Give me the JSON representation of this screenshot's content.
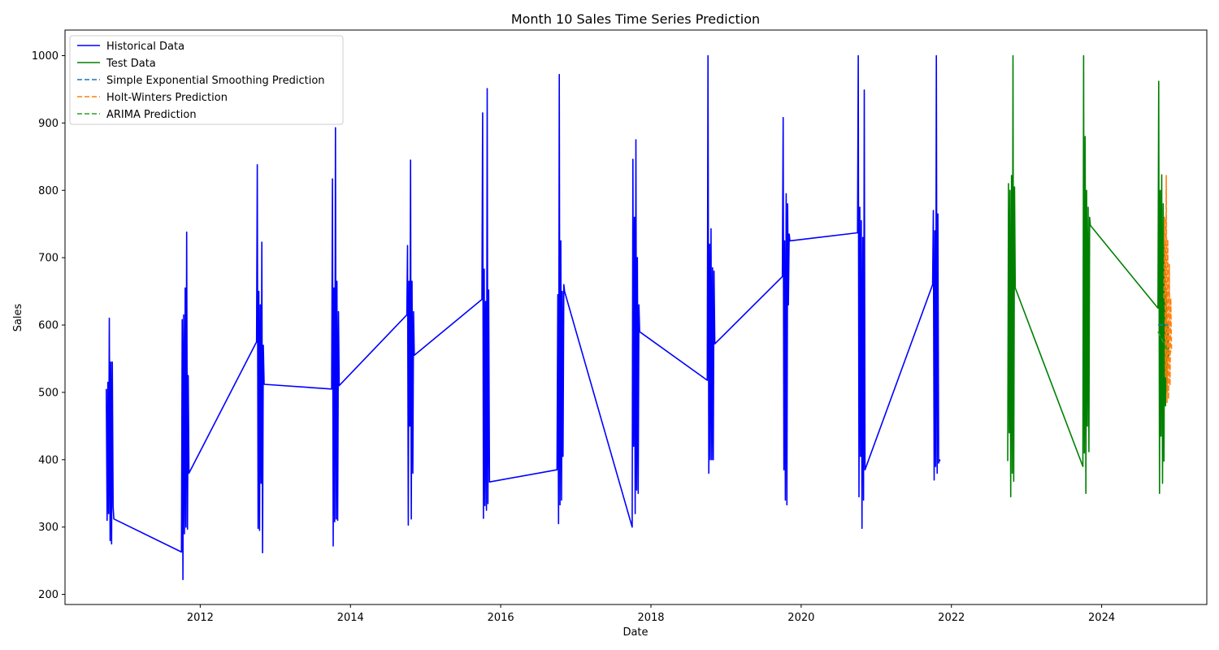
{
  "chart_data": {
    "type": "line",
    "title": "Month 10 Sales Time Series Prediction",
    "xlabel": "Date",
    "ylabel": "Sales",
    "xlim": [
      2010.2,
      2025.4
    ],
    "ylim": [
      185,
      1038
    ],
    "x_ticks": [
      2012,
      2014,
      2016,
      2018,
      2020,
      2022,
      2024
    ],
    "y_ticks": [
      200,
      300,
      400,
      500,
      600,
      700,
      800,
      900,
      1000
    ],
    "grid": false,
    "legend_position": "top-left",
    "series": [
      {
        "name": "Historical Data",
        "color": "#0000ff",
        "dash": "solid",
        "points": [
          [
            2010.75,
            505
          ],
          [
            2010.76,
            310
          ],
          [
            2010.77,
            515
          ],
          [
            2010.78,
            320
          ],
          [
            2010.79,
            610
          ],
          [
            2010.8,
            280
          ],
          [
            2010.81,
            545
          ],
          [
            2010.82,
            275
          ],
          [
            2010.83,
            545
          ],
          [
            2010.84,
            330
          ],
          [
            2010.85,
            312
          ],
          [
            2011.75,
            263
          ],
          [
            2011.76,
            608
          ],
          [
            2011.77,
            222
          ],
          [
            2011.78,
            615
          ],
          [
            2011.79,
            290
          ],
          [
            2011.8,
            655
          ],
          [
            2011.81,
            300
          ],
          [
            2011.82,
            738
          ],
          [
            2011.83,
            297
          ],
          [
            2011.84,
            525
          ],
          [
            2011.85,
            380
          ],
          [
            2012.75,
            575
          ],
          [
            2012.76,
            838
          ],
          [
            2012.77,
            298
          ],
          [
            2012.78,
            650
          ],
          [
            2012.79,
            295
          ],
          [
            2012.8,
            630
          ],
          [
            2012.81,
            365
          ],
          [
            2012.82,
            723
          ],
          [
            2012.83,
            262
          ],
          [
            2012.84,
            570
          ],
          [
            2012.85,
            512
          ],
          [
            2013.75,
            505
          ],
          [
            2013.76,
            817
          ],
          [
            2013.77,
            272
          ],
          [
            2013.78,
            655
          ],
          [
            2013.79,
            308
          ],
          [
            2013.8,
            893
          ],
          [
            2013.81,
            312
          ],
          [
            2013.82,
            665
          ],
          [
            2013.83,
            310
          ],
          [
            2013.84,
            620
          ],
          [
            2013.85,
            510
          ],
          [
            2014.75,
            615
          ],
          [
            2014.76,
            718
          ],
          [
            2014.77,
            303
          ],
          [
            2014.78,
            665
          ],
          [
            2014.79,
            450
          ],
          [
            2014.8,
            845
          ],
          [
            2014.81,
            312
          ],
          [
            2014.82,
            665
          ],
          [
            2014.83,
            380
          ],
          [
            2014.84,
            620
          ],
          [
            2014.85,
            555
          ],
          [
            2015.75,
            638
          ],
          [
            2015.76,
            915
          ],
          [
            2015.77,
            313
          ],
          [
            2015.78,
            683
          ],
          [
            2015.79,
            332
          ],
          [
            2015.8,
            635
          ],
          [
            2015.81,
            325
          ],
          [
            2015.82,
            951
          ],
          [
            2015.83,
            335
          ],
          [
            2015.84,
            652
          ],
          [
            2015.85,
            367
          ],
          [
            2016.75,
            385
          ],
          [
            2016.76,
            645
          ],
          [
            2016.77,
            305
          ],
          [
            2016.78,
            972
          ],
          [
            2016.79,
            333
          ],
          [
            2016.8,
            725
          ],
          [
            2016.81,
            340
          ],
          [
            2016.82,
            650
          ],
          [
            2016.83,
            405
          ],
          [
            2016.84,
            660
          ],
          [
            2016.85,
            650
          ],
          [
            2017.75,
            300
          ],
          [
            2017.76,
            846
          ],
          [
            2017.77,
            420
          ],
          [
            2017.78,
            760
          ],
          [
            2017.79,
            320
          ],
          [
            2017.8,
            875
          ],
          [
            2017.81,
            355
          ],
          [
            2017.82,
            700
          ],
          [
            2017.83,
            350
          ],
          [
            2017.84,
            630
          ],
          [
            2017.85,
            590
          ],
          [
            2018.75,
            518
          ],
          [
            2018.76,
            1000
          ],
          [
            2018.77,
            380
          ],
          [
            2018.78,
            720
          ],
          [
            2018.79,
            400
          ],
          [
            2018.8,
            743
          ],
          [
            2018.81,
            400
          ],
          [
            2018.82,
            685
          ],
          [
            2018.83,
            400
          ],
          [
            2018.84,
            680
          ],
          [
            2018.85,
            572
          ],
          [
            2019.75,
            672
          ],
          [
            2019.76,
            908
          ],
          [
            2019.77,
            385
          ],
          [
            2019.78,
            725
          ],
          [
            2019.79,
            340
          ],
          [
            2019.8,
            795
          ],
          [
            2019.81,
            333
          ],
          [
            2019.82,
            780
          ],
          [
            2019.83,
            630
          ],
          [
            2019.84,
            735
          ],
          [
            2019.85,
            725
          ],
          [
            2020.75,
            737
          ],
          [
            2020.76,
            1000
          ],
          [
            2020.77,
            345
          ],
          [
            2020.78,
            775
          ],
          [
            2020.79,
            405
          ],
          [
            2020.8,
            755
          ],
          [
            2020.81,
            298
          ],
          [
            2020.82,
            730
          ],
          [
            2020.83,
            340
          ],
          [
            2020.84,
            949
          ],
          [
            2020.85,
            385
          ],
          [
            2021.75,
            660
          ],
          [
            2021.76,
            770
          ],
          [
            2021.77,
            370
          ],
          [
            2021.78,
            740
          ],
          [
            2021.79,
            390
          ],
          [
            2021.8,
            1000
          ],
          [
            2021.81,
            380
          ],
          [
            2021.82,
            765
          ],
          [
            2021.83,
            395
          ],
          [
            2021.84,
            400
          ],
          [
            2021.85,
            398
          ]
        ]
      },
      {
        "name": "Test Data",
        "color": "#008000",
        "dash": "solid",
        "points": [
          [
            2022.75,
            398
          ],
          [
            2022.76,
            810
          ],
          [
            2022.77,
            440
          ],
          [
            2022.78,
            800
          ],
          [
            2022.79,
            345
          ],
          [
            2022.8,
            822
          ],
          [
            2022.81,
            380
          ],
          [
            2022.82,
            1000
          ],
          [
            2022.83,
            368
          ],
          [
            2022.84,
            805
          ],
          [
            2022.85,
            655
          ],
          [
            2023.75,
            390
          ],
          [
            2023.76,
            1000
          ],
          [
            2023.77,
            410
          ],
          [
            2023.78,
            880
          ],
          [
            2023.79,
            350
          ],
          [
            2023.8,
            800
          ],
          [
            2023.81,
            450
          ],
          [
            2023.82,
            775
          ],
          [
            2023.83,
            412
          ],
          [
            2023.84,
            760
          ],
          [
            2023.85,
            748
          ],
          [
            2024.75,
            625
          ],
          [
            2024.76,
            962
          ],
          [
            2024.77,
            350
          ],
          [
            2024.78,
            800
          ],
          [
            2024.79,
            435
          ],
          [
            2024.8,
            823
          ],
          [
            2024.81,
            365
          ],
          [
            2024.82,
            780
          ],
          [
            2024.83,
            398
          ],
          [
            2024.84,
            720
          ],
          [
            2024.85,
            480
          ],
          [
            2024.86,
            650
          ],
          [
            2024.87,
            500
          ],
          [
            2024.88,
            600
          ],
          [
            2024.89,
            550
          ]
        ]
      },
      {
        "name": "Simple Exponential Smoothing Prediction",
        "color": "#1f77b4",
        "dash": "dashed",
        "points": [
          [
            2024.75,
            600
          ],
          [
            2024.89,
            600
          ]
        ]
      },
      {
        "name": "Holt-Winters Prediction",
        "color": "#ff7f0e",
        "dash": "dashed",
        "points": [
          [
            2024.83,
            640
          ],
          [
            2024.84,
            760
          ],
          [
            2024.85,
            522
          ],
          [
            2024.86,
            822
          ],
          [
            2024.87,
            485
          ],
          [
            2024.88,
            727
          ],
          [
            2024.89,
            490
          ],
          [
            2024.9,
            690
          ],
          [
            2024.91,
            510
          ],
          [
            2024.92,
            640
          ],
          [
            2024.93,
            560
          ]
        ]
      },
      {
        "name": "ARIMA Prediction",
        "color": "#2ca02c",
        "dash": "dashed",
        "points": [
          [
            2024.75,
            590
          ],
          [
            2024.89,
            560
          ]
        ]
      }
    ]
  }
}
